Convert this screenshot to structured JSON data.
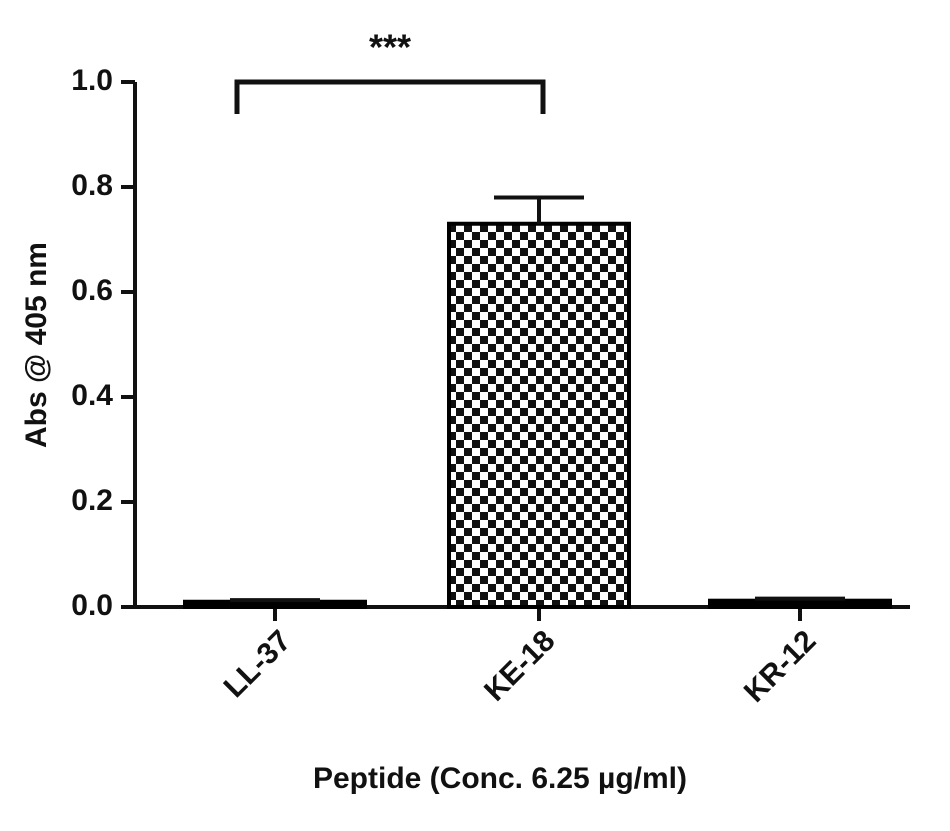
{
  "chart_data": {
    "type": "bar",
    "categories": [
      "LL-37",
      "KE-18",
      "KR-12"
    ],
    "values": [
      0.01,
      0.73,
      0.012
    ],
    "errors": [
      0.003,
      0.05,
      0.004
    ],
    "color": "#000000",
    "fill_patterns": [
      "solid",
      "checker",
      "solid"
    ],
    "ylim": [
      0,
      1
    ],
    "yticks": [
      {
        "value": 0,
        "label": "0.0"
      },
      0.2,
      0.4,
      0.6,
      0.8,
      {
        "value": 1,
        "label": "1.0"
      }
    ],
    "ylabel": "Abs @ 405 nm",
    "xlabel": "Peptide (Conc. 6.25 µg/ml)",
    "annotation": "***",
    "grid": false
  }
}
